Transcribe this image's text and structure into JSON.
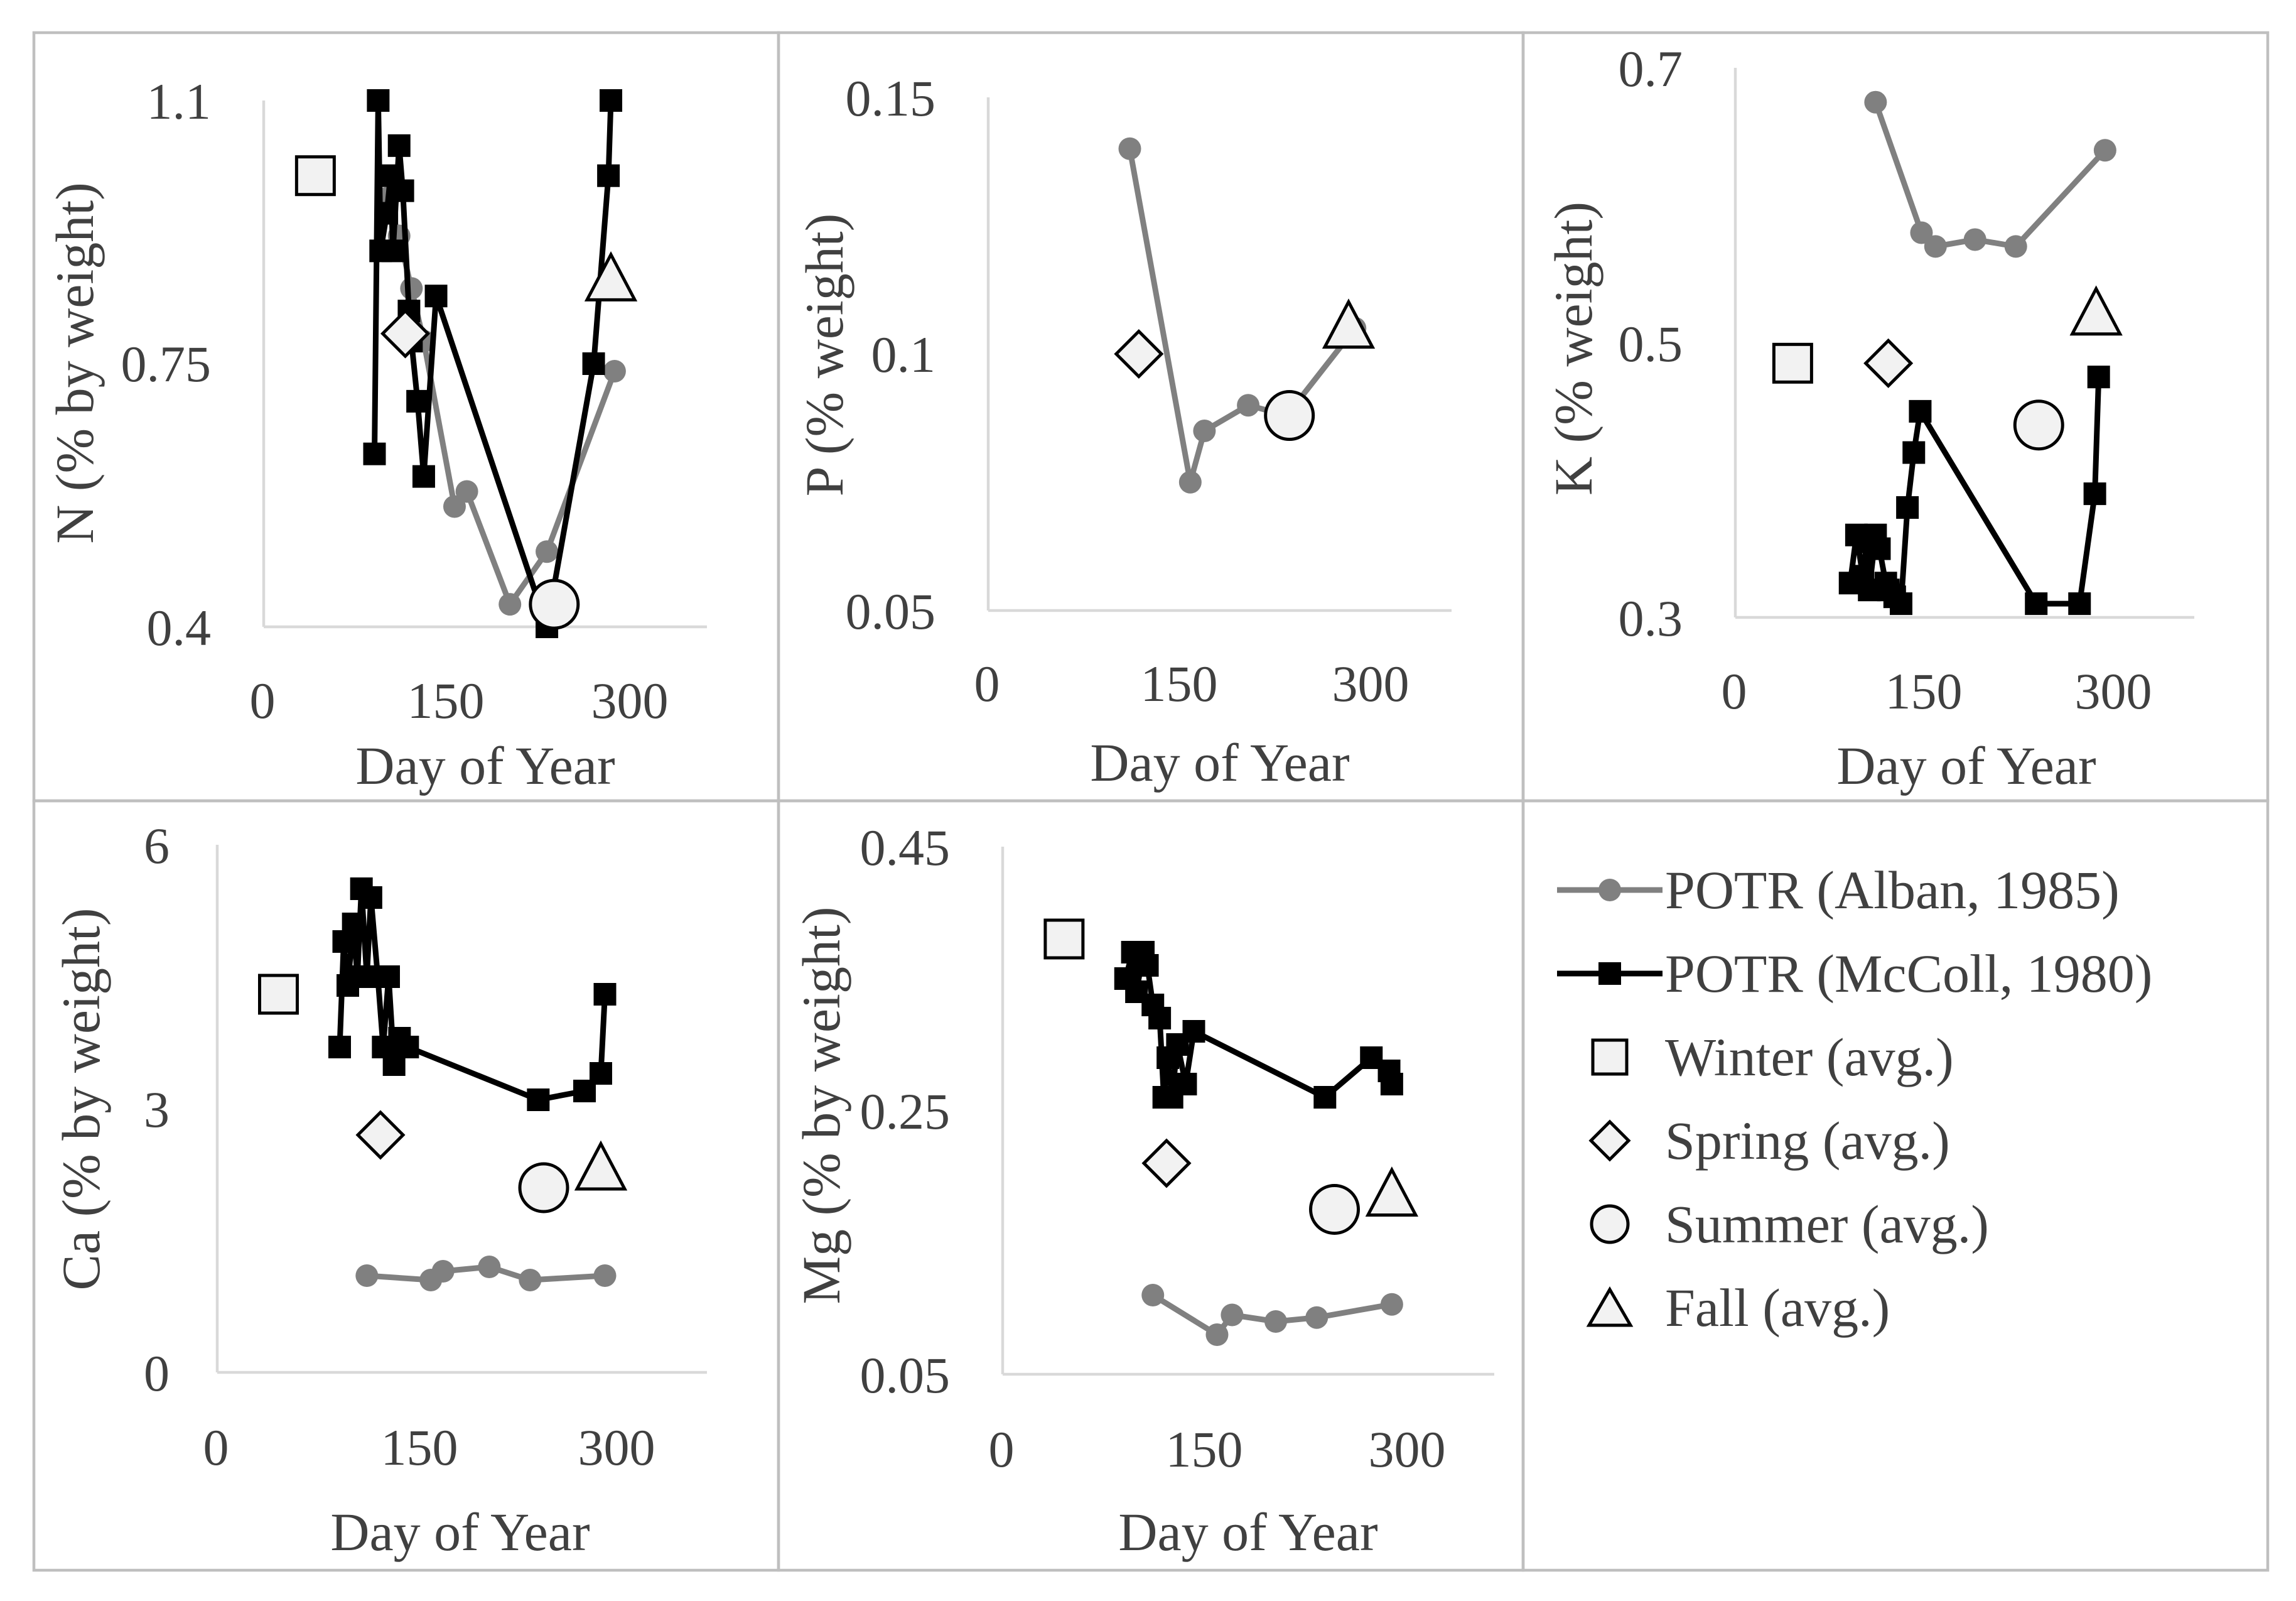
{
  "chart_data": [
    {
      "id": "N",
      "type": "scatter",
      "xlabel": "Day of Year",
      "ylabel": "N (% by weight)",
      "xlim": [
        0,
        360
      ],
      "xticks": [
        0,
        150,
        300
      ],
      "xtick_labels": [
        "0",
        "150",
        "300"
      ],
      "ylim": [
        0.4,
        1.1
      ],
      "yticks": [
        0.4,
        0.75,
        1.1
      ],
      "ytick_labels": [
        "0.4",
        "0.75",
        "1.1"
      ],
      "series": [
        {
          "key": "alban",
          "x": [
            100,
            110,
            120,
            130,
            155,
            165,
            200,
            230,
            285
          ],
          "y": [
            0.97,
            0.92,
            0.85,
            0.78,
            0.56,
            0.58,
            0.43,
            0.5,
            0.74
          ]
        },
        {
          "key": "mccoll",
          "x": [
            90,
            93,
            95,
            100,
            103,
            105,
            110,
            113,
            118,
            120,
            125,
            130,
            140,
            230,
            268,
            280,
            282
          ],
          "y": [
            0.63,
            1.1,
            0.9,
            0.95,
            1.0,
            0.9,
            1.04,
            0.98,
            0.82,
            0.78,
            0.7,
            0.6,
            0.84,
            0.4,
            0.75,
            1.0,
            1.1
          ]
        }
      ],
      "seasons": {
        "winter": [
          42,
          1.0
        ],
        "spring": [
          115,
          0.79
        ],
        "summer": [
          236,
          0.43
        ],
        "fall": [
          282,
          0.86
        ]
      }
    },
    {
      "id": "P",
      "type": "scatter",
      "xlabel": "Day of Year",
      "ylabel": "P (% weight)",
      "xlim": [
        0,
        360
      ],
      "xticks": [
        0,
        150,
        300
      ],
      "xtick_labels": [
        "0",
        "150",
        "300"
      ],
      "ylim": [
        0.05,
        0.15
      ],
      "yticks": [
        0.05,
        0.1,
        0.15
      ],
      "ytick_labels": [
        "0.05",
        "0.1",
        "0.15"
      ],
      "series": [
        {
          "key": "alban",
          "x": [
            110,
            157,
            168,
            202,
            232,
            285
          ],
          "y": [
            0.14,
            0.075,
            0.085,
            0.09,
            0.088,
            0.105
          ]
        }
      ],
      "seasons": {
        "spring": [
          117,
          0.1
        ],
        "summer": [
          234,
          0.088
        ],
        "fall": [
          280,
          0.105
        ]
      }
    },
    {
      "id": "K",
      "type": "scatter",
      "xlabel": "Day of Year",
      "ylabel": "K (% weight)",
      "xlim": [
        0,
        360
      ],
      "xticks": [
        0,
        150,
        300
      ],
      "xtick_labels": [
        "0",
        "150",
        "300"
      ],
      "ylim": [
        0.3,
        0.7
      ],
      "yticks": [
        0.3,
        0.5,
        0.7
      ],
      "ytick_labels": [
        "0.3",
        "0.5",
        "0.7"
      ],
      "series": [
        {
          "key": "alban",
          "x": [
            110,
            146,
            157,
            188,
            220,
            290
          ],
          "y": [
            0.675,
            0.58,
            0.57,
            0.575,
            0.57,
            0.64
          ]
        },
        {
          "key": "mccoll",
          "x": [
            90,
            95,
            100,
            103,
            105,
            110,
            113,
            118,
            120,
            125,
            130,
            135,
            140,
            145,
            236,
            270,
            282,
            285
          ],
          "y": [
            0.325,
            0.36,
            0.33,
            0.355,
            0.32,
            0.36,
            0.35,
            0.325,
            0.32,
            0.315,
            0.31,
            0.38,
            0.42,
            0.45,
            0.31,
            0.31,
            0.39,
            0.475
          ]
        }
      ],
      "seasons": {
        "winter": [
          45,
          0.485
        ],
        "spring": [
          120,
          0.485
        ],
        "summer": [
          238,
          0.44
        ],
        "fall": [
          283,
          0.52
        ]
      }
    },
    {
      "id": "Ca",
      "type": "scatter",
      "xlabel": "Day of Year",
      "ylabel": "Ca (% by weight)",
      "xlim": [
        0,
        360
      ],
      "xticks": [
        0,
        150,
        300
      ],
      "xtick_labels": [
        "0",
        "150",
        "300"
      ],
      "ylim": [
        0,
        6
      ],
      "yticks": [
        0,
        3,
        6
      ],
      "ytick_labels": [
        "0",
        "3",
        "6"
      ],
      "series": [
        {
          "key": "alban",
          "x": [
            110,
            157,
            166,
            200,
            230,
            285
          ],
          "y": [
            1.1,
            1.05,
            1.15,
            1.2,
            1.05,
            1.1
          ]
        },
        {
          "key": "mccoll",
          "x": [
            90,
            93,
            96,
            100,
            103,
            106,
            110,
            113,
            118,
            122,
            126,
            130,
            134,
            140,
            236,
            270,
            282,
            285
          ],
          "y": [
            3.7,
            4.9,
            4.4,
            5.1,
            4.5,
            5.5,
            4.5,
            5.4,
            4.5,
            3.7,
            4.5,
            3.5,
            3.8,
            3.7,
            3.1,
            3.2,
            3.4,
            4.3
          ]
        }
      ],
      "seasons": {
        "winter": [
          45,
          4.3
        ],
        "spring": [
          120,
          2.7
        ],
        "summer": [
          240,
          2.1
        ],
        "fall": [
          282,
          2.3
        ]
      }
    },
    {
      "id": "Mg",
      "type": "scatter",
      "xlabel": "Day of Year",
      "ylabel": "Mg (% by weight)",
      "xlim": [
        0,
        360
      ],
      "xticks": [
        0,
        150,
        300
      ],
      "xtick_labels": [
        "0",
        "150",
        "300"
      ],
      "ylim": [
        0.05,
        0.45
      ],
      "yticks": [
        0.05,
        0.25,
        0.45
      ],
      "ytick_labels": [
        "0.05",
        "0.25",
        "0.45"
      ],
      "series": [
        {
          "key": "alban",
          "x": [
            110,
            157,
            168,
            200,
            230,
            285
          ],
          "y": [
            0.11,
            0.08,
            0.095,
            0.09,
            0.093,
            0.103
          ]
        },
        {
          "key": "mccoll",
          "x": [
            90,
            95,
            98,
            103,
            106,
            110,
            115,
            118,
            121,
            124,
            128,
            134,
            140,
            236,
            270,
            283,
            285
          ],
          "y": [
            0.35,
            0.37,
            0.34,
            0.37,
            0.36,
            0.33,
            0.32,
            0.26,
            0.29,
            0.26,
            0.3,
            0.27,
            0.31,
            0.26,
            0.29,
            0.28,
            0.27
          ]
        }
      ],
      "seasons": {
        "winter": [
          45,
          0.38
        ],
        "spring": [
          120,
          0.21
        ],
        "summer": [
          243,
          0.175
        ],
        "fall": [
          285,
          0.185
        ]
      }
    }
  ],
  "legend": {
    "placement": "bottom-right",
    "alban": "POTR (Alban, 1985)",
    "mccoll": "POTR (McColl, 1980)",
    "winter": "Winter (avg.)",
    "spring": "Spring (avg.)",
    "summer": "Summer (avg.)",
    "fall": "Fall (avg.)"
  },
  "colors": {
    "alban": "#808080",
    "mccoll": "#000000",
    "marker_fill": "#f2f2f2",
    "marker_stroke": "#000000",
    "axis": "#d9d9d9",
    "text": "#404040"
  }
}
